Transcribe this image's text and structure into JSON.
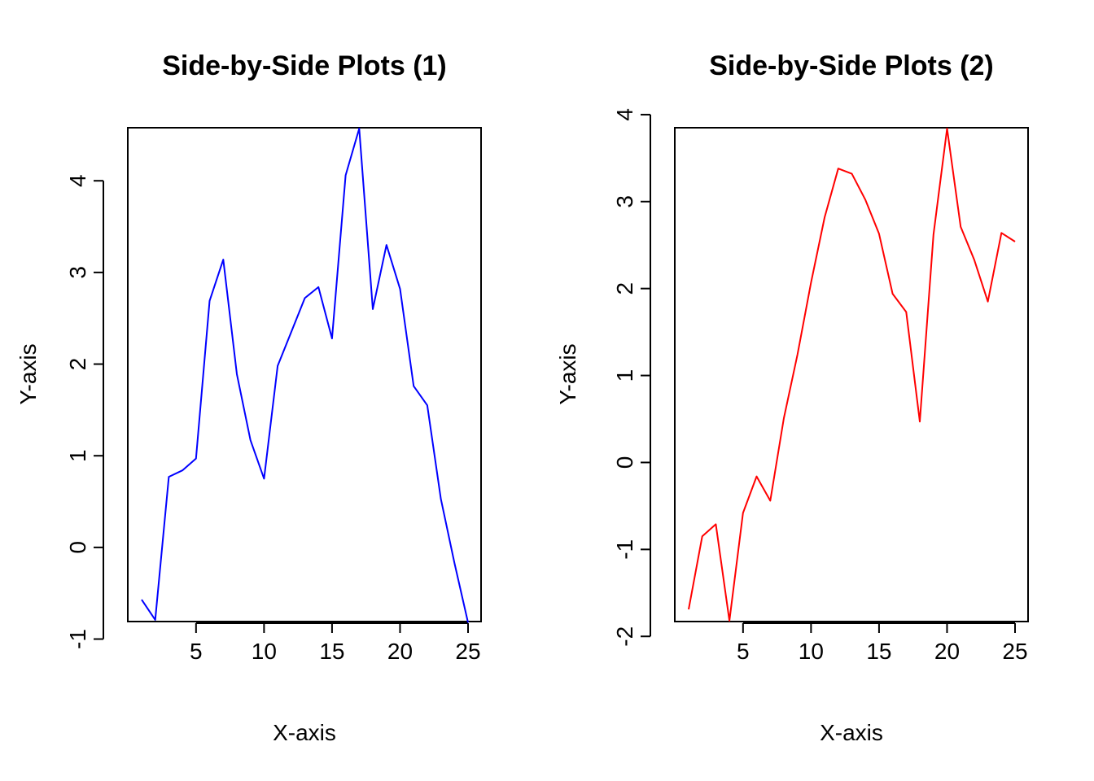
{
  "chart_data": [
    {
      "type": "line",
      "title": "Side-by-Side Plots (1)",
      "xlabel": "X-axis",
      "ylabel": "Y-axis",
      "line_color": "#0000FF",
      "xlim": [
        1,
        25
      ],
      "ylim": [
        -0.8,
        4.57
      ],
      "xticks": [
        5,
        10,
        15,
        20,
        25
      ],
      "yticks": [
        -1,
        0,
        1,
        2,
        3,
        4
      ],
      "grid": false,
      "x": [
        1,
        2,
        3,
        4,
        5,
        6,
        7,
        8,
        9,
        10,
        11,
        12,
        13,
        14,
        15,
        16,
        17,
        18,
        19,
        20,
        21,
        22,
        23,
        24,
        25
      ],
      "y": [
        -0.57,
        -0.79,
        0.77,
        0.84,
        0.97,
        2.69,
        3.14,
        1.89,
        1.17,
        0.75,
        1.98,
        2.35,
        2.72,
        2.84,
        2.28,
        4.06,
        4.57,
        2.6,
        3.3,
        2.82,
        1.76,
        1.55,
        0.53,
        -0.17,
        -0.82
      ]
    },
    {
      "type": "line",
      "title": "Side-by-Side Plots (2)",
      "xlabel": "X-axis",
      "ylabel": "Y-axis",
      "line_color": "#FF0000",
      "xlim": [
        1,
        25
      ],
      "ylim": [
        -1.82,
        3.84
      ],
      "xticks": [
        5,
        10,
        15,
        20,
        25
      ],
      "yticks": [
        -2,
        -1,
        0,
        1,
        2,
        3,
        4
      ],
      "grid": false,
      "x": [
        1,
        2,
        3,
        4,
        5,
        6,
        7,
        8,
        9,
        10,
        11,
        12,
        13,
        14,
        15,
        16,
        17,
        18,
        19,
        20,
        21,
        22,
        23,
        24,
        25
      ],
      "y": [
        -1.69,
        -0.85,
        -0.71,
        -1.82,
        -0.58,
        -0.16,
        -0.44,
        0.51,
        1.24,
        2.07,
        2.82,
        3.38,
        3.32,
        3.02,
        2.63,
        1.94,
        1.73,
        0.47,
        2.62,
        3.84,
        2.71,
        2.33,
        1.85,
        2.64,
        2.54
      ]
    }
  ]
}
